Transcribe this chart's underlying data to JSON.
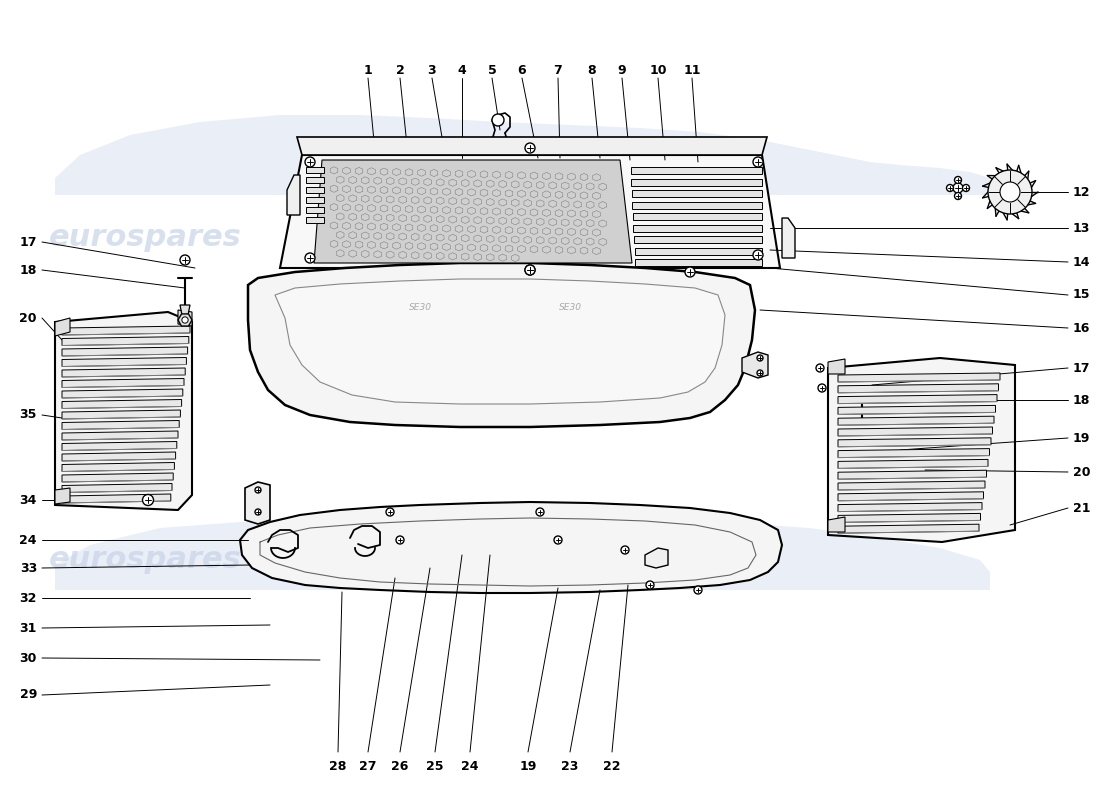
{
  "bg_color": "#ffffff",
  "line_color": "#000000",
  "label_color": "#000000",
  "watermark_color": "#c8d4e8",
  "top_numbers": [
    [
      "1",
      368,
      78,
      375,
      152
    ],
    [
      "2",
      400,
      78,
      408,
      155
    ],
    [
      "3",
      432,
      78,
      445,
      155
    ],
    [
      "4",
      462,
      78,
      462,
      158
    ],
    [
      "5",
      492,
      78,
      500,
      130
    ],
    [
      "6",
      522,
      78,
      538,
      158
    ],
    [
      "7",
      558,
      78,
      560,
      158
    ],
    [
      "8",
      592,
      78,
      600,
      158
    ],
    [
      "9",
      622,
      78,
      630,
      160
    ],
    [
      "10",
      658,
      78,
      665,
      160
    ],
    [
      "11",
      692,
      78,
      698,
      162
    ]
  ],
  "right_numbers": [
    [
      "12",
      1068,
      192,
      1020,
      192
    ],
    [
      "13",
      1068,
      228,
      770,
      228
    ],
    [
      "14",
      1068,
      262,
      770,
      250
    ],
    [
      "15",
      1068,
      295,
      770,
      268
    ],
    [
      "16",
      1068,
      328,
      760,
      310
    ],
    [
      "17",
      1068,
      368,
      872,
      385
    ],
    [
      "18",
      1068,
      400,
      852,
      400
    ],
    [
      "19",
      1068,
      438,
      900,
      450
    ],
    [
      "20",
      1068,
      472,
      925,
      470
    ],
    [
      "21",
      1068,
      508,
      1010,
      525
    ]
  ],
  "left_numbers": [
    [
      "17",
      42,
      242,
      195,
      268
    ],
    [
      "18",
      42,
      270,
      185,
      288
    ],
    [
      "20",
      42,
      318,
      62,
      340
    ],
    [
      "35",
      42,
      415,
      62,
      418
    ],
    [
      "34",
      42,
      500,
      155,
      500
    ],
    [
      "24",
      42,
      540,
      248,
      540
    ],
    [
      "33",
      42,
      568,
      250,
      565
    ],
    [
      "32",
      42,
      598,
      250,
      598
    ],
    [
      "31",
      42,
      628,
      270,
      625
    ],
    [
      "30",
      42,
      658,
      320,
      660
    ],
    [
      "29",
      42,
      695,
      270,
      685
    ]
  ],
  "bottom_numbers": [
    [
      "28",
      338,
      752,
      342,
      592
    ],
    [
      "27",
      368,
      752,
      395,
      578
    ],
    [
      "26",
      400,
      752,
      430,
      568
    ],
    [
      "25",
      435,
      752,
      462,
      555
    ],
    [
      "24",
      470,
      752,
      490,
      555
    ],
    [
      "19",
      528,
      752,
      558,
      588
    ],
    [
      "23",
      570,
      752,
      600,
      590
    ],
    [
      "22",
      612,
      752,
      628,
      585
    ]
  ]
}
